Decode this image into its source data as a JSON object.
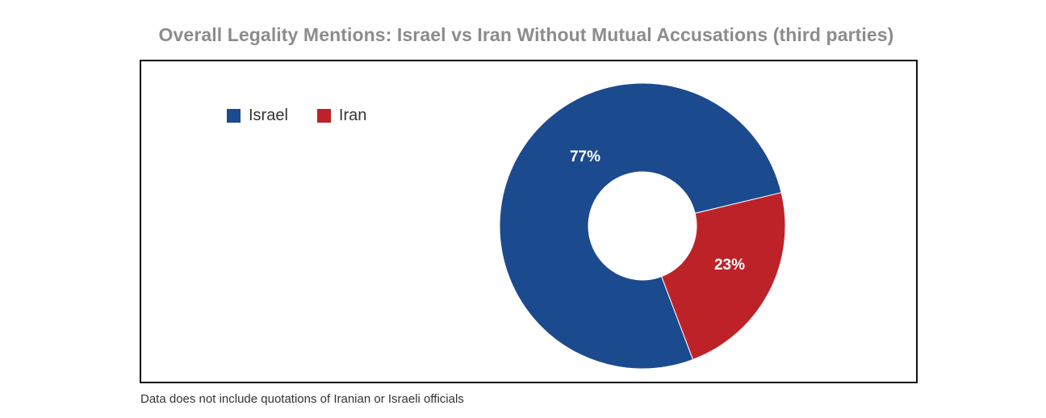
{
  "chart_data": {
    "type": "pie",
    "title": "Overall Legality Mentions: Israel vs Iran Without Mutual Accusations (third parties)",
    "categories": [
      "Israel",
      "Iran"
    ],
    "values": [
      77,
      23
    ],
    "labels": [
      "77%",
      "23%"
    ],
    "colors": [
      "#1c4a8e",
      "#be2229"
    ],
    "legend_placement": "top-left",
    "style": "donut",
    "footnote": "Data does not include quotations of Iranian or Israeli officials"
  }
}
